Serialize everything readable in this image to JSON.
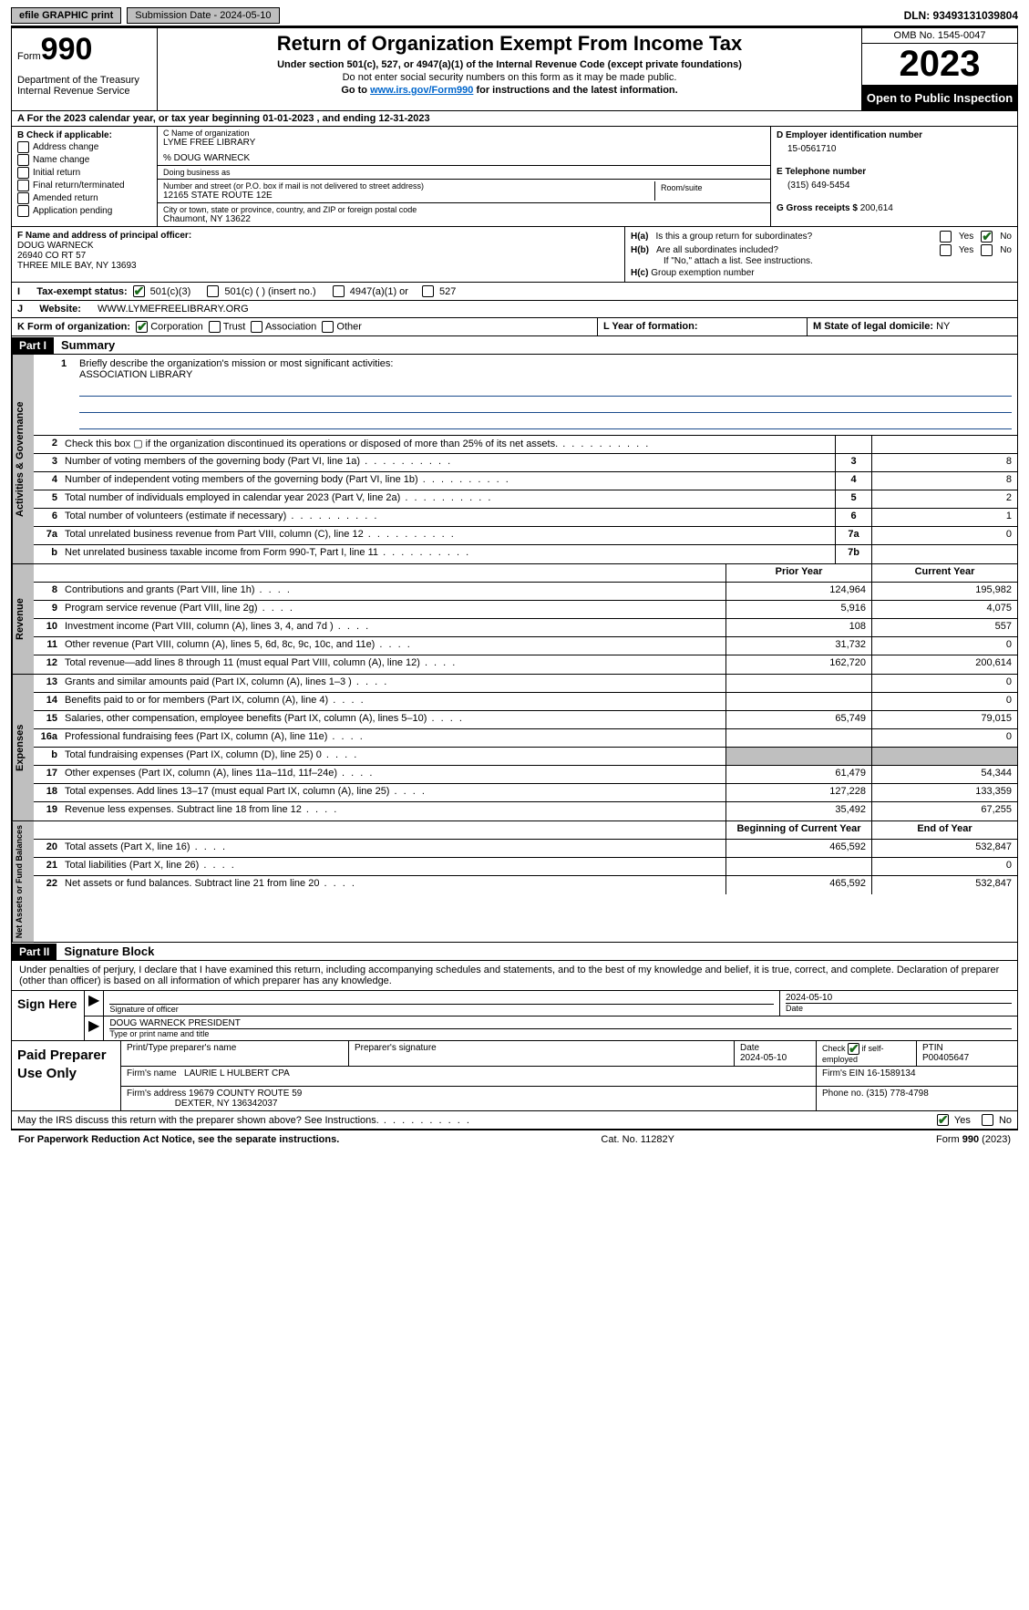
{
  "topbar": {
    "efile": "efile GRAPHIC print",
    "submission": "Submission Date - 2024-05-10",
    "dln": "DLN: 93493131039804"
  },
  "header": {
    "form_prefix": "Form",
    "form_num": "990",
    "title": "Return of Organization Exempt From Income Tax",
    "section": "Under section 501(c), 527, or 4947(a)(1) of the Internal Revenue Code (except private foundations)",
    "ssn": "Do not enter social security numbers on this form as it may be made public.",
    "goto_pre": "Go to ",
    "goto_link": "www.irs.gov/Form990",
    "goto_post": " for instructions and the latest information.",
    "dept": "Department of the Treasury\nInternal Revenue Service",
    "omb": "OMB No. 1545-0047",
    "year": "2023",
    "open": "Open to Public Inspection"
  },
  "row_a": "A  For the 2023 calendar year, or tax year beginning 01-01-2023    , and ending 12-31-2023",
  "col_b": {
    "hdr": "B Check if applicable:",
    "items": [
      "Address change",
      "Name change",
      "Initial return",
      "Final return/terminated",
      "Amended return",
      "Application pending"
    ]
  },
  "col_c": {
    "name_lbl": "C Name of organization",
    "name": "LYME FREE LIBRARY",
    "care_of": "% DOUG WARNECK",
    "dba_lbl": "Doing business as",
    "street_lbl": "Number and street (or P.O. box if mail is not delivered to street address)",
    "street": "12165 STATE ROUTE 12E",
    "room_lbl": "Room/suite",
    "city_lbl": "City or town, state or province, country, and ZIP or foreign postal code",
    "city": "Chaumont, NY  13622"
  },
  "col_d": {
    "ein_lbl": "D Employer identification number",
    "ein": "15-0561710",
    "tel_lbl": "E Telephone number",
    "tel": "(315) 649-5454",
    "gross_lbl": "G Gross receipts $",
    "gross": "200,614"
  },
  "row_f": {
    "lbl": "F  Name and address of principal officer:",
    "name": "DOUG WARNECK",
    "addr1": "26940 CO RT 57",
    "addr2": "THREE MILE BAY, NY  13693"
  },
  "row_h": {
    "a": "Is this a group return for subordinates?",
    "b": "Are all subordinates included?",
    "note": "If \"No,\" attach a list. See instructions.",
    "c": "Group exemption number"
  },
  "row_i": {
    "lbl": "Tax-exempt status:",
    "o1": "501(c)(3)",
    "o2": "501(c) (  ) (insert no.)",
    "o3": "4947(a)(1) or",
    "o4": "527"
  },
  "row_j": {
    "lbl": "Website:",
    "val": "WWW.LYMEFREELIBRARY.ORG"
  },
  "row_k": {
    "k1_lbl": "K Form of organization:",
    "opts": [
      "Corporation",
      "Trust",
      "Association",
      "Other"
    ],
    "k2_lbl": "L Year of formation:",
    "k3_lbl": "M State of legal domicile:",
    "k3_val": "NY"
  },
  "part1": {
    "hdr": "Part I",
    "title": "Summary"
  },
  "mission": {
    "num": "1",
    "lbl": "Briefly describe the organization's mission or most significant activities:",
    "val": "ASSOCIATION LIBRARY"
  },
  "governance": {
    "vtab": "Activities & Governance",
    "rows": [
      {
        "n": "2",
        "d": "Check this box ▢ if the organization discontinued its operations or disposed of more than 25% of its net assets.",
        "box": "",
        "v": ""
      },
      {
        "n": "3",
        "d": "Number of voting members of the governing body (Part VI, line 1a)",
        "box": "3",
        "v": "8"
      },
      {
        "n": "4",
        "d": "Number of independent voting members of the governing body (Part VI, line 1b)",
        "box": "4",
        "v": "8"
      },
      {
        "n": "5",
        "d": "Total number of individuals employed in calendar year 2023 (Part V, line 2a)",
        "box": "5",
        "v": "2"
      },
      {
        "n": "6",
        "d": "Total number of volunteers (estimate if necessary)",
        "box": "6",
        "v": "1"
      },
      {
        "n": "7a",
        "d": "Total unrelated business revenue from Part VIII, column (C), line 12",
        "box": "7a",
        "v": "0"
      },
      {
        "n": "b",
        "d": "Net unrelated business taxable income from Form 990-T, Part I, line 11",
        "box": "7b",
        "v": ""
      }
    ]
  },
  "revenue": {
    "vtab": "Revenue",
    "hdr_prior": "Prior Year",
    "hdr_curr": "Current Year",
    "rows": [
      {
        "n": "8",
        "d": "Contributions and grants (Part VIII, line 1h)",
        "p": "124,964",
        "c": "195,982"
      },
      {
        "n": "9",
        "d": "Program service revenue (Part VIII, line 2g)",
        "p": "5,916",
        "c": "4,075"
      },
      {
        "n": "10",
        "d": "Investment income (Part VIII, column (A), lines 3, 4, and 7d )",
        "p": "108",
        "c": "557"
      },
      {
        "n": "11",
        "d": "Other revenue (Part VIII, column (A), lines 5, 6d, 8c, 9c, 10c, and 11e)",
        "p": "31,732",
        "c": "0"
      },
      {
        "n": "12",
        "d": "Total revenue—add lines 8 through 11 (must equal Part VIII, column (A), line 12)",
        "p": "162,720",
        "c": "200,614"
      }
    ]
  },
  "expenses": {
    "vtab": "Expenses",
    "rows": [
      {
        "n": "13",
        "d": "Grants and similar amounts paid (Part IX, column (A), lines 1–3 )",
        "p": "",
        "c": "0"
      },
      {
        "n": "14",
        "d": "Benefits paid to or for members (Part IX, column (A), line 4)",
        "p": "",
        "c": "0"
      },
      {
        "n": "15",
        "d": "Salaries, other compensation, employee benefits (Part IX, column (A), lines 5–10)",
        "p": "65,749",
        "c": "79,015"
      },
      {
        "n": "16a",
        "d": "Professional fundraising fees (Part IX, column (A), line 11e)",
        "p": "",
        "c": "0"
      },
      {
        "n": "b",
        "d": "Total fundraising expenses (Part IX, column (D), line 25) 0",
        "p": "grey",
        "c": "grey"
      },
      {
        "n": "17",
        "d": "Other expenses (Part IX, column (A), lines 11a–11d, 11f–24e)",
        "p": "61,479",
        "c": "54,344"
      },
      {
        "n": "18",
        "d": "Total expenses. Add lines 13–17 (must equal Part IX, column (A), line 25)",
        "p": "127,228",
        "c": "133,359"
      },
      {
        "n": "19",
        "d": "Revenue less expenses. Subtract line 18 from line 12",
        "p": "35,492",
        "c": "67,255"
      }
    ]
  },
  "netassets": {
    "vtab": "Net Assets or Fund Balances",
    "hdr_begin": "Beginning of Current Year",
    "hdr_end": "End of Year",
    "rows": [
      {
        "n": "20",
        "d": "Total assets (Part X, line 16)",
        "p": "465,592",
        "c": "532,847"
      },
      {
        "n": "21",
        "d": "Total liabilities (Part X, line 26)",
        "p": "",
        "c": "0"
      },
      {
        "n": "22",
        "d": "Net assets or fund balances. Subtract line 21 from line 20",
        "p": "465,592",
        "c": "532,847"
      }
    ]
  },
  "part2": {
    "hdr": "Part II",
    "title": "Signature Block"
  },
  "sig_text": "Under penalties of perjury, I declare that I have examined this return, including accompanying schedules and statements, and to the best of my knowledge and belief, it is true, correct, and complete. Declaration of preparer (other than officer) is based on all information of which preparer has any knowledge.",
  "sign": {
    "lbl": "Sign Here",
    "sig_lbl": "Signature of officer",
    "name": "DOUG WARNECK PRESIDENT",
    "name_lbl": "Type or print name and title",
    "date_lbl": "Date",
    "date": "2024-05-10"
  },
  "prep": {
    "lbl": "Paid Preparer Use Only",
    "r1": {
      "c1": "Print/Type preparer's name",
      "c2": "Preparer's signature",
      "c3": "Date",
      "c3v": "2024-05-10",
      "c4": "Check ▢ if self-employed",
      "c5": "PTIN",
      "c5v": "P00405647"
    },
    "r2": {
      "lbl": "Firm's name",
      "val": "LAURIE L HULBERT CPA",
      "ein_lbl": "Firm's EIN",
      "ein": "16-1589134"
    },
    "r3": {
      "lbl": "Firm's address",
      "val1": "19679 COUNTY ROUTE 59",
      "val2": "DEXTER, NY  136342037",
      "ph_lbl": "Phone no.",
      "ph": "(315) 778-4798"
    }
  },
  "discuss": "May the IRS discuss this return with the preparer shown above? See Instructions.",
  "footer": {
    "l": "For Paperwork Reduction Act Notice, see the separate instructions.",
    "c": "Cat. No. 11282Y",
    "r": "Form 990 (2023)"
  }
}
